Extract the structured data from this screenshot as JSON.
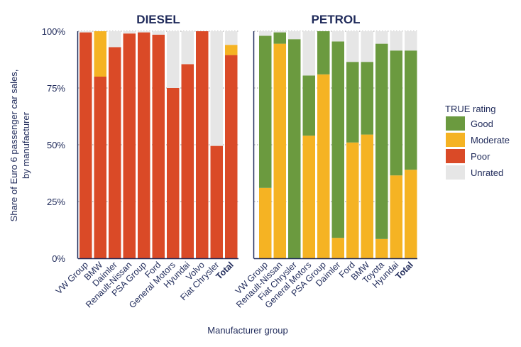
{
  "colors": {
    "good": "#6b9a3f",
    "moderate": "#f5b323",
    "poor": "#da4a27",
    "unrated": "#e6e6e6",
    "text": "#1f2a5a",
    "axis": "#1f2a5a",
    "grid": "#9a9a9a"
  },
  "chart_data": {
    "type": "bar",
    "stacked": true,
    "ylim": [
      0,
      100
    ],
    "ytick_labels": [
      "0%",
      "25%",
      "50%",
      "75%",
      "100%"
    ],
    "ytick_values": [
      0,
      25,
      50,
      75,
      100
    ],
    "ylabel_lines": [
      "Share of Euro 6 passenger car sales,",
      "by manufacturer"
    ],
    "xlabel": "Manufacturer group",
    "legend": {
      "title": "TRUE rating",
      "placement": "right",
      "entries": [
        {
          "key": "good",
          "label": "Good"
        },
        {
          "key": "moderate",
          "label": "Moderate"
        },
        {
          "key": "poor",
          "label": "Poor"
        },
        {
          "key": "unrated",
          "label": "Unrated"
        }
      ]
    },
    "panels": [
      {
        "title": "DIESEL",
        "categories": [
          "VW Group",
          "BMW",
          "Daimler",
          "Renault-Nissan",
          "PSA Group",
          "Ford",
          "General Motors",
          "Hyundai",
          "Volvo",
          "Fiat Chrysler",
          "Total"
        ],
        "bold_categories": [
          "Total"
        ],
        "series": [
          {
            "key": "poor",
            "values": [
              99.5,
              80,
              93,
              99,
              99.5,
              98.5,
              75,
              85.5,
              100,
              49.5,
              89.5
            ]
          },
          {
            "key": "moderate",
            "values": [
              0,
              20,
              0,
              0,
              0,
              0,
              0,
              0,
              0,
              0,
              4.5
            ]
          },
          {
            "key": "good",
            "values": [
              0,
              0,
              0,
              0,
              0,
              0,
              0,
              0,
              0,
              0,
              0
            ]
          },
          {
            "key": "unrated",
            "values": [
              0.5,
              0,
              7,
              1,
              0.5,
              1.5,
              25,
              14.5,
              0,
              50.5,
              6
            ]
          }
        ]
      },
      {
        "title": "PETROL",
        "categories": [
          "VW Group",
          "Renault-Nissan",
          "Fiat Chrysler",
          "General Motors",
          "PSA Group",
          "Daimler",
          "Ford",
          "BMW",
          "Toyota",
          "Hyundai",
          "Total"
        ],
        "bold_categories": [
          "Total"
        ],
        "series": [
          {
            "key": "poor",
            "values": [
              0,
              0,
              0,
              0,
              0,
              0,
              0,
              0,
              0,
              0,
              0
            ]
          },
          {
            "key": "moderate",
            "values": [
              31,
              94.5,
              0,
              54,
              81,
              9,
              51,
              54.5,
              8.5,
              36.5,
              39
            ]
          },
          {
            "key": "good",
            "values": [
              67,
              5,
              96.5,
              26.5,
              19,
              86.5,
              35.5,
              32,
              86,
              55,
              52.5
            ]
          },
          {
            "key": "unrated",
            "values": [
              2,
              0.5,
              3.5,
              19.5,
              0,
              4.5,
              13.5,
              13.5,
              5.5,
              8.5,
              8.5
            ]
          }
        ]
      }
    ]
  }
}
